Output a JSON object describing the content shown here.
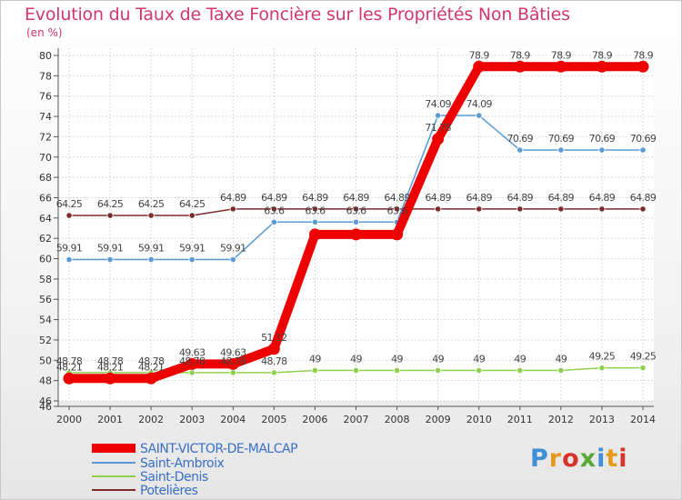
{
  "chart_data": {
    "type": "line",
    "title": "Evolution du Taux de Taxe Foncière sur les Propriétés Non Bâties",
    "unit_label": "(en %)",
    "xlabel": "",
    "ylabel": "",
    "ylim": [
      46,
      80
    ],
    "ytick_step": 2,
    "grid": true,
    "legend_position": "bottom-left",
    "categories": [
      "2000",
      "2001",
      "2002",
      "2003",
      "2004",
      "2005",
      "2006",
      "2007",
      "2008",
      "2009",
      "2010",
      "2011",
      "2012",
      "2013",
      "2014"
    ],
    "series": [
      {
        "name": "SAINT-VICTOR-DE-MALCAP",
        "color": "#ee0000",
        "values": [
          48.21,
          48.21,
          48.21,
          49.63,
          49.63,
          51.12,
          62.38,
          62.38,
          62.38,
          71.78,
          78.9,
          78.9,
          78.9,
          78.9,
          78.9
        ],
        "labels": [
          "48.21",
          "48.21",
          "48.21",
          "49.63",
          "49.63",
          "51.12",
          "",
          "",
          "",
          "71.78",
          "78.9",
          "78.9",
          "78.9",
          "78.9",
          "78.9"
        ]
      },
      {
        "name": "Saint-Ambroix",
        "color": "#5b9bd5",
        "values": [
          59.91,
          59.91,
          59.91,
          59.91,
          59.91,
          63.6,
          63.6,
          63.6,
          63.6,
          74.09,
          74.09,
          70.69,
          70.69,
          70.69,
          70.69
        ],
        "labels": [
          "59.91",
          "59.91",
          "59.91",
          "59.91",
          "59.91",
          "63.6",
          "63.6",
          "63.6",
          "63.6",
          "74.09",
          "74.09",
          "70.69",
          "70.69",
          "70.69",
          "70.69"
        ]
      },
      {
        "name": "Saint-Denis",
        "color": "#8fd14f",
        "values": [
          48.78,
          48.78,
          48.78,
          48.78,
          48.78,
          48.78,
          49,
          49,
          49,
          49,
          49,
          49,
          49,
          49.25,
          49.25
        ],
        "labels": [
          "48.78",
          "48.78",
          "48.78",
          "48.78",
          "48.78",
          "48.78",
          "49",
          "49",
          "49",
          "49",
          "49",
          "49",
          "49",
          "49.25",
          "49.25"
        ]
      },
      {
        "name": "Potelières",
        "color": "#7b2b2b",
        "values": [
          64.25,
          64.25,
          64.25,
          64.25,
          64.89,
          64.89,
          64.89,
          64.89,
          64.89,
          64.89,
          64.89,
          64.89,
          64.89,
          64.89,
          64.89
        ],
        "labels": [
          "64.25",
          "64.25",
          "64.25",
          "64.25",
          "64.89",
          "64.89",
          "64.89",
          "64.89",
          "64.89",
          "64.89",
          "64.89",
          "64.89",
          "64.89",
          "64.89",
          "64.89"
        ]
      }
    ]
  },
  "watermark": "Proxiti"
}
